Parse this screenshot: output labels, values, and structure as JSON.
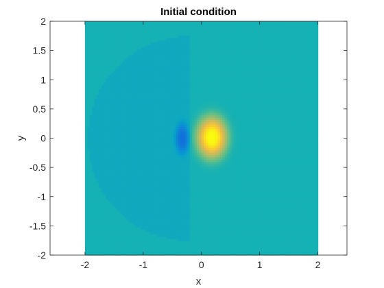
{
  "chart_data": {
    "type": "heatmap",
    "title": "Initial condition",
    "xlabel": "x",
    "ylabel": "y",
    "xlim": [
      -2.6,
      2.5
    ],
    "ylim": [
      -2,
      2
    ],
    "xticks": [
      -2,
      -1,
      0,
      1,
      2
    ],
    "yticks": [
      -2,
      -1.5,
      -1,
      -0.5,
      0,
      0.5,
      1,
      1.5,
      2
    ],
    "xtick_labels": [
      "-2",
      "-1",
      "0",
      "1",
      "2"
    ],
    "ytick_labels": [
      "-2",
      "-1.5",
      "-1",
      "-0.5",
      "0",
      "0.5",
      "1",
      "1.5",
      "2"
    ],
    "data_extent": {
      "x": [
        -2,
        2
      ],
      "y": [
        -2,
        2
      ]
    },
    "colormap": "parula",
    "background_value": 0,
    "colors": {
      "background": "#18c0b4",
      "half_disc": "#17b8c0",
      "negative_blob": "#2c8ee0",
      "positive_blob": "#f6e91e",
      "blob_edge": "#e9bc3a"
    },
    "features": [
      {
        "kind": "half-disc",
        "center": [
          -0.2,
          0
        ],
        "radius": 1.75,
        "side": "left",
        "value": -0.08
      },
      {
        "kind": "gaussian",
        "center": [
          0.18,
          0.02
        ],
        "sigma_x": 0.22,
        "sigma_y": 0.3,
        "value": 1.0
      },
      {
        "kind": "gaussian",
        "center": [
          -0.33,
          0
        ],
        "sigma_x": 0.09,
        "sigma_y": 0.2,
        "value": -0.6
      }
    ],
    "grid": false,
    "legend": "none"
  }
}
